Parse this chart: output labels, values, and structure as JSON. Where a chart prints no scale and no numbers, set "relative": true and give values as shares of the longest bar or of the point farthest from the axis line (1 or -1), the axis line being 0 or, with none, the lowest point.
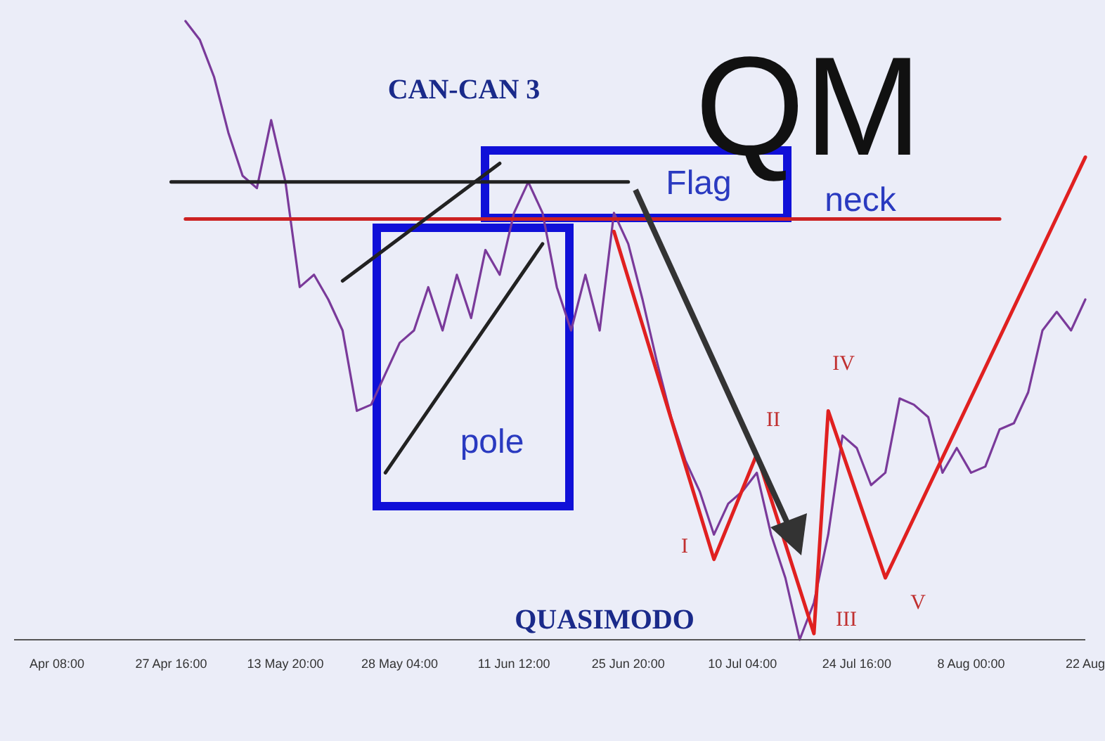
{
  "chart_data": {
    "type": "line",
    "title": "QM",
    "relative": true,
    "legend": false,
    "grid": false,
    "marker": "none",
    "line_style": "solid",
    "categories": [
      null,
      null,
      null,
      "Apr 08:00",
      null,
      null,
      null,
      null,
      null,
      null,
      null,
      "27 Apr 16:00",
      null,
      null,
      null,
      null,
      null,
      null,
      null,
      "13 May 20:00",
      null,
      null,
      null,
      null,
      null,
      null,
      null,
      "28 May 04:00",
      null,
      null,
      null,
      null,
      null,
      null,
      null,
      "11 Jun 12:00",
      null,
      null,
      null,
      null,
      null,
      null,
      null,
      "25 Jun 20:00",
      null,
      null,
      null,
      null,
      null,
      null,
      null,
      "10 Jul 04:00",
      null,
      null,
      null,
      null,
      null,
      null,
      null,
      "24 Jul 16:00",
      null,
      null,
      null,
      null,
      null,
      null,
      null,
      "8 Aug 00:00",
      null,
      null,
      null,
      null,
      null,
      null,
      null,
      "22 Aug"
    ],
    "annotations": [
      "CAN-CAN 3",
      "QUASIMODO",
      "Flag",
      "neck",
      "pole",
      "I",
      "II",
      "III",
      "IV",
      "V"
    ],
    "series": [
      {
        "color": "#7a3a9a",
        "values": [
          null,
          null,
          null,
          null,
          null,
          null,
          null,
          null,
          null,
          null,
          null,
          null,
          1,
          0.97,
          0.91,
          0.82,
          0.75,
          0.73,
          0.84,
          0.74,
          0.57,
          0.59,
          0.55,
          0.5,
          0.37,
          0.38,
          0.43,
          0.48,
          0.5,
          0.57,
          0.5,
          0.59,
          0.52,
          0.63,
          0.59,
          0.69,
          0.74,
          0.69,
          0.57,
          0.5,
          0.59,
          0.5,
          0.69,
          0.64,
          0.55,
          0.45,
          0.36,
          0.29,
          0.24,
          0.17,
          0.22,
          0.24,
          0.27,
          0.17,
          0.1,
          0,
          0.06,
          0.17,
          0.33,
          0.31,
          0.25,
          0.27,
          0.39,
          0.38,
          0.36,
          0.27,
          0.31,
          0.27,
          0.28,
          0.34,
          0.35,
          0.4,
          0.5,
          0.53,
          0.5,
          0.55
        ]
      },
      {
        "color": "#e02020",
        "values": [
          null,
          null,
          null,
          null,
          null,
          null,
          null,
          null,
          null,
          null,
          null,
          null,
          null,
          null,
          null,
          null,
          null,
          null,
          null,
          null,
          null,
          null,
          null,
          null,
          null,
          null,
          null,
          null,
          null,
          null,
          null,
          null,
          null,
          null,
          null,
          null,
          null,
          null,
          null,
          null,
          null,
          null,
          0.66,
          null,
          null,
          null,
          null,
          null,
          null,
          0.13,
          null,
          null,
          0.3,
          null,
          null,
          null,
          0.01,
          0.37,
          null,
          null,
          null,
          0.1,
          null,
          null,
          null,
          null,
          null,
          null,
          null,
          null,
          null,
          null,
          null,
          null,
          null,
          0.78
        ]
      },
      {
        "color": "#222222",
        "values": [
          null,
          null,
          null,
          null,
          null,
          null,
          null,
          null,
          null,
          null,
          null,
          0.74,
          null,
          null,
          null,
          null,
          null,
          null,
          null,
          null,
          null,
          null,
          null,
          null,
          null,
          null,
          null,
          null,
          null,
          null,
          null,
          null,
          null,
          null,
          null,
          null,
          null,
          null,
          null,
          null,
          null,
          null,
          null,
          0.74,
          null,
          null,
          null,
          null,
          null,
          null,
          null,
          null,
          null,
          null,
          null,
          null,
          null,
          null,
          null,
          null,
          null,
          null,
          null,
          null,
          null,
          null,
          null,
          null,
          null,
          null,
          null,
          null,
          null,
          null,
          null,
          null
        ]
      },
      {
        "color": "#cc2222",
        "values": [
          null,
          null,
          null,
          null,
          null,
          null,
          null,
          null,
          null,
          null,
          null,
          null,
          0.68,
          null,
          null,
          null,
          null,
          null,
          null,
          null,
          null,
          null,
          null,
          null,
          null,
          null,
          null,
          null,
          null,
          null,
          null,
          null,
          null,
          null,
          null,
          null,
          null,
          null,
          null,
          null,
          null,
          null,
          null,
          null,
          null,
          null,
          null,
          null,
          null,
          null,
          null,
          null,
          null,
          null,
          null,
          null,
          null,
          null,
          null,
          null,
          null,
          null,
          null,
          null,
          null,
          null,
          null,
          null,
          null,
          0.68,
          null,
          null,
          null,
          null,
          null,
          null
        ]
      },
      {
        "color": "#222222",
        "values": [
          null,
          null,
          null,
          null,
          null,
          null,
          null,
          null,
          null,
          null,
          null,
          null,
          null,
          null,
          null,
          null,
          null,
          null,
          null,
          null,
          null,
          null,
          null,
          0.58,
          null,
          null,
          null,
          null,
          null,
          null,
          null,
          null,
          null,
          null,
          0.77,
          null,
          null,
          null,
          null,
          null,
          null,
          null,
          null,
          null,
          null,
          null,
          null,
          null,
          null,
          null,
          null,
          null,
          null,
          null,
          null,
          null,
          null,
          null,
          null,
          null,
          null,
          null,
          null,
          null,
          null,
          null,
          null,
          null,
          null,
          null,
          null,
          null,
          null,
          null,
          null,
          null
        ]
      },
      {
        "color": "#222222",
        "values": [
          null,
          null,
          null,
          null,
          null,
          null,
          null,
          null,
          null,
          null,
          null,
          null,
          null,
          null,
          null,
          null,
          null,
          null,
          null,
          null,
          null,
          null,
          null,
          null,
          null,
          null,
          0.27,
          null,
          null,
          null,
          null,
          null,
          null,
          null,
          null,
          null,
          null,
          0.64,
          null,
          null,
          null,
          null,
          null,
          null,
          null,
          null,
          null,
          null,
          null,
          null,
          null,
          null,
          null,
          null,
          null,
          null,
          null,
          null,
          null,
          null,
          null,
          null,
          null,
          null,
          null,
          null,
          null,
          null,
          null,
          null,
          null,
          null,
          null,
          null,
          null,
          null
        ]
      }
    ]
  }
}
